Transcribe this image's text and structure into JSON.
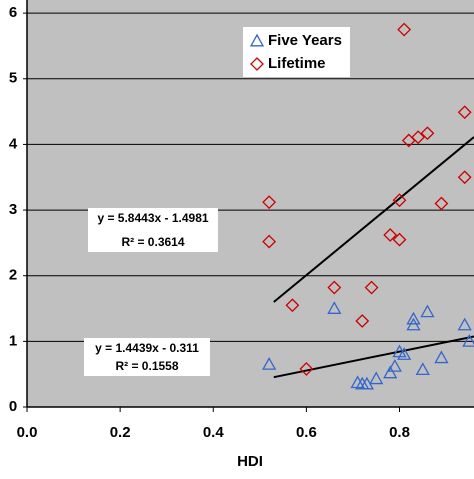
{
  "chart_data": {
    "type": "scatter",
    "x_label": "HDI",
    "xlim": [
      0,
      0.96
    ],
    "ylim": [
      0,
      6.2
    ],
    "xticks": [
      {
        "value": 0,
        "label": "0.0"
      },
      0.2,
      0.4,
      0.6,
      0.8
    ],
    "yticks": [
      0,
      1,
      2,
      3,
      4,
      5,
      6
    ],
    "grid": true,
    "legend": "top-right",
    "series": [
      {
        "name": "Five Years",
        "color": "#3366cc",
        "marker": "triangle",
        "x": [
          0.52,
          0.66,
          0.71,
          0.72,
          0.73,
          0.75,
          0.78,
          0.79,
          0.8,
          0.81,
          0.83,
          0.83,
          0.85,
          0.86,
          0.89,
          0.94,
          0.95
        ],
        "values": [
          0.65,
          1.5,
          0.37,
          0.35,
          0.35,
          0.43,
          0.52,
          0.62,
          0.84,
          0.8,
          1.34,
          1.25,
          0.57,
          1.45,
          0.75,
          1.25,
          1.0
        ],
        "trendline": {
          "slope": 1.4439,
          "intercept": -0.311,
          "x": [
            0.53,
            0.96
          ]
        }
      },
      {
        "name": "Lifetime",
        "color": "#cc0000",
        "marker": "diamond",
        "x": [
          0.52,
          0.52,
          0.57,
          0.6,
          0.66,
          0.72,
          0.74,
          0.78,
          0.8,
          0.8,
          0.81,
          0.82,
          0.84,
          0.86,
          0.89,
          0.94,
          0.94
        ],
        "values": [
          3.12,
          2.52,
          1.55,
          0.58,
          1.82,
          1.31,
          1.82,
          2.62,
          2.55,
          3.15,
          5.75,
          4.06,
          4.11,
          4.17,
          3.1,
          4.49,
          3.5
        ],
        "trendline": {
          "slope": 5.8443,
          "intercept": -1.4981,
          "x": [
            0.53,
            0.96
          ]
        }
      }
    ],
    "annotations": [
      {
        "lines": [
          "y = 5.8443x - 1.4981",
          "R² = 0.3614"
        ]
      },
      {
        "lines": [
          "y = 1.4439x - 0.311",
          "R² = 0.1558"
        ]
      }
    ]
  }
}
